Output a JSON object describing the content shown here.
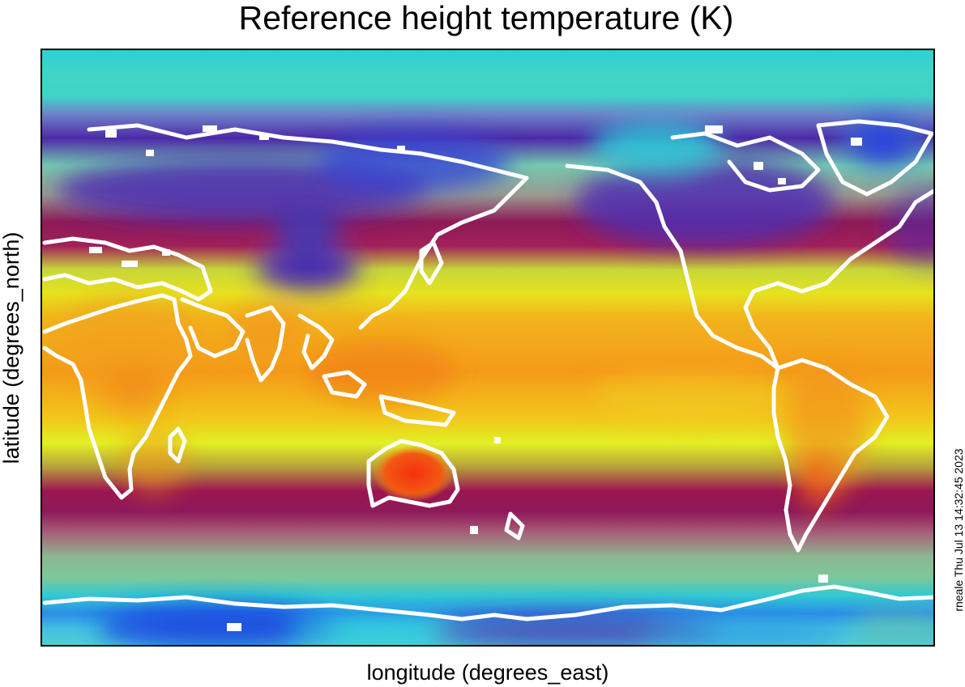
{
  "title": "Reference height temperature (K)",
  "xlabel": "longitude (degrees_east)",
  "ylabel": "latitude (degrees_north)",
  "footer_stamp": "rneale Thu Jul 13 14:32:45 2023",
  "map": {
    "variable": "Reference height temperature",
    "units": "K",
    "projection": "cylindrical equidistant",
    "lon_range": [
      0,
      360
    ],
    "lat_range": [
      -90,
      90
    ],
    "colorbar": "none shown",
    "coastline_color": "#ffffff",
    "palette": [
      "#1a3fe0",
      "#2ad6dc",
      "#7fe0a0",
      "#5a2aa8",
      "#9c1550",
      "#d8f224",
      "#f0a018",
      "#f25010"
    ],
    "warmest_regions": [
      "Australia interior",
      "central Africa",
      "South America interior"
    ],
    "coldest_regions": [
      "Antarctica",
      "Greenland",
      "Siberia",
      "Tibetan Plateau"
    ]
  }
}
